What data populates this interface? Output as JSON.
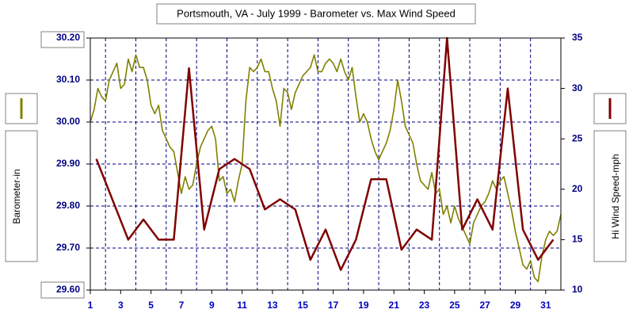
{
  "chart_data": {
    "type": "line",
    "title": "Portsmouth, VA - July 1999 - Barometer vs. Max Wind Speed",
    "ylabel": "Barometer-in",
    "y2label": "Hi Wind Speed-mph",
    "xlim": [
      1,
      32
    ],
    "xticks": [
      1,
      3,
      5,
      7,
      9,
      11,
      13,
      15,
      17,
      19,
      21,
      23,
      25,
      27,
      29,
      31
    ],
    "ylim": [
      29.6,
      30.2
    ],
    "yticks": [
      {
        "value": 29.6,
        "label": "29.60"
      },
      {
        "value": 29.7,
        "label": "29.70"
      },
      {
        "value": 29.8,
        "label": "29.80"
      },
      {
        "value": 29.9,
        "label": "29.90"
      },
      {
        "value": 30.0,
        "label": "30.00"
      },
      {
        "value": 30.1,
        "label": "30.10"
      },
      {
        "value": 30.2,
        "label": "30.20"
      }
    ],
    "y2lim": [
      10,
      35
    ],
    "y2ticks": [
      10,
      15,
      20,
      25,
      30,
      35
    ],
    "grid": true,
    "series": [
      {
        "color": "#808000",
        "axis": "y",
        "x": [
          1,
          1.25,
          1.5,
          1.75,
          2,
          2.25,
          2.5,
          2.75,
          3,
          3.25,
          3.5,
          3.75,
          4,
          4.25,
          4.5,
          4.75,
          5,
          5.25,
          5.5,
          5.75,
          6,
          6.25,
          6.5,
          6.75,
          7,
          7.25,
          7.5,
          7.75,
          8,
          8.25,
          8.5,
          8.75,
          9,
          9.25,
          9.5,
          9.75,
          10,
          10.25,
          10.5,
          10.75,
          11,
          11.25,
          11.5,
          11.75,
          12,
          12.25,
          12.5,
          12.75,
          13,
          13.25,
          13.5,
          13.75,
          14,
          14.25,
          14.5,
          14.75,
          15,
          15.25,
          15.5,
          15.75,
          16,
          16.25,
          16.5,
          16.75,
          17,
          17.25,
          17.5,
          17.75,
          18,
          18.25,
          18.5,
          18.75,
          19,
          19.25,
          19.5,
          19.75,
          20,
          20.25,
          20.5,
          20.75,
          21,
          21.25,
          21.5,
          21.75,
          22,
          22.25,
          22.5,
          22.75,
          23,
          23.25,
          23.5,
          23.75,
          24,
          24.25,
          24.5,
          24.75,
          25,
          25.25,
          25.5,
          25.75,
          26,
          26.25,
          26.5,
          26.75,
          27,
          27.25,
          27.5,
          27.75,
          28,
          28.25,
          28.5,
          28.75,
          29,
          29.25,
          29.5,
          29.75,
          30,
          30.25,
          30.5,
          30.75,
          31,
          31.25,
          31.5,
          31.75,
          32
        ],
        "values": [
          30.0,
          30.03,
          30.08,
          30.06,
          30.05,
          30.1,
          30.12,
          30.14,
          30.08,
          30.09,
          30.15,
          30.12,
          30.16,
          30.13,
          30.13,
          30.1,
          30.04,
          30.02,
          30.04,
          29.98,
          29.96,
          29.94,
          29.93,
          29.88,
          29.83,
          29.87,
          29.84,
          29.85,
          29.9,
          29.94,
          29.96,
          29.98,
          29.99,
          29.96,
          29.86,
          29.87,
          29.83,
          29.84,
          29.81,
          29.86,
          29.9,
          30.05,
          30.13,
          30.12,
          30.13,
          30.15,
          30.12,
          30.12,
          30.08,
          30.05,
          29.99,
          30.08,
          30.07,
          30.03,
          30.07,
          30.09,
          30.11,
          30.12,
          30.13,
          30.16,
          30.12,
          30.12,
          30.14,
          30.15,
          30.14,
          30.12,
          30.15,
          30.12,
          30.1,
          30.13,
          30.06,
          30.0,
          30.02,
          30.0,
          29.96,
          29.93,
          29.91,
          29.93,
          29.95,
          29.98,
          30.03,
          30.1,
          30.05,
          29.99,
          29.97,
          29.95,
          29.9,
          29.86,
          29.85,
          29.84,
          29.88,
          29.83,
          29.84,
          29.78,
          29.8,
          29.76,
          29.8,
          29.77,
          29.75,
          29.73,
          29.71,
          29.76,
          29.78,
          29.8,
          29.81,
          29.83,
          29.86,
          29.84,
          29.86,
          29.87,
          29.83,
          29.79,
          29.74,
          29.7,
          29.66,
          29.65,
          29.67,
          29.63,
          29.62,
          29.68,
          29.72,
          29.74,
          29.73,
          29.74,
          29.78
        ]
      },
      {
        "color": "#800000",
        "axis": "y2",
        "x": [
          1.4,
          3.5,
          4.5,
          5.5,
          6.5,
          7.5,
          8.5,
          9.5,
          10.5,
          11.5,
          12.5,
          13.5,
          14.5,
          15.5,
          16.5,
          17.5,
          18.5,
          19.5,
          20.5,
          21.5,
          22.5,
          23.5,
          24.5,
          25.5,
          26.5,
          27.5,
          28.5,
          29.5,
          30.5,
          31.5
        ],
        "values": [
          23,
          15,
          17,
          15,
          15,
          32,
          16,
          22,
          23,
          22,
          18,
          19,
          18,
          13,
          16,
          12,
          15,
          21,
          21,
          14,
          16,
          15,
          35,
          16,
          19,
          16,
          30,
          16,
          13,
          15
        ]
      }
    ]
  }
}
